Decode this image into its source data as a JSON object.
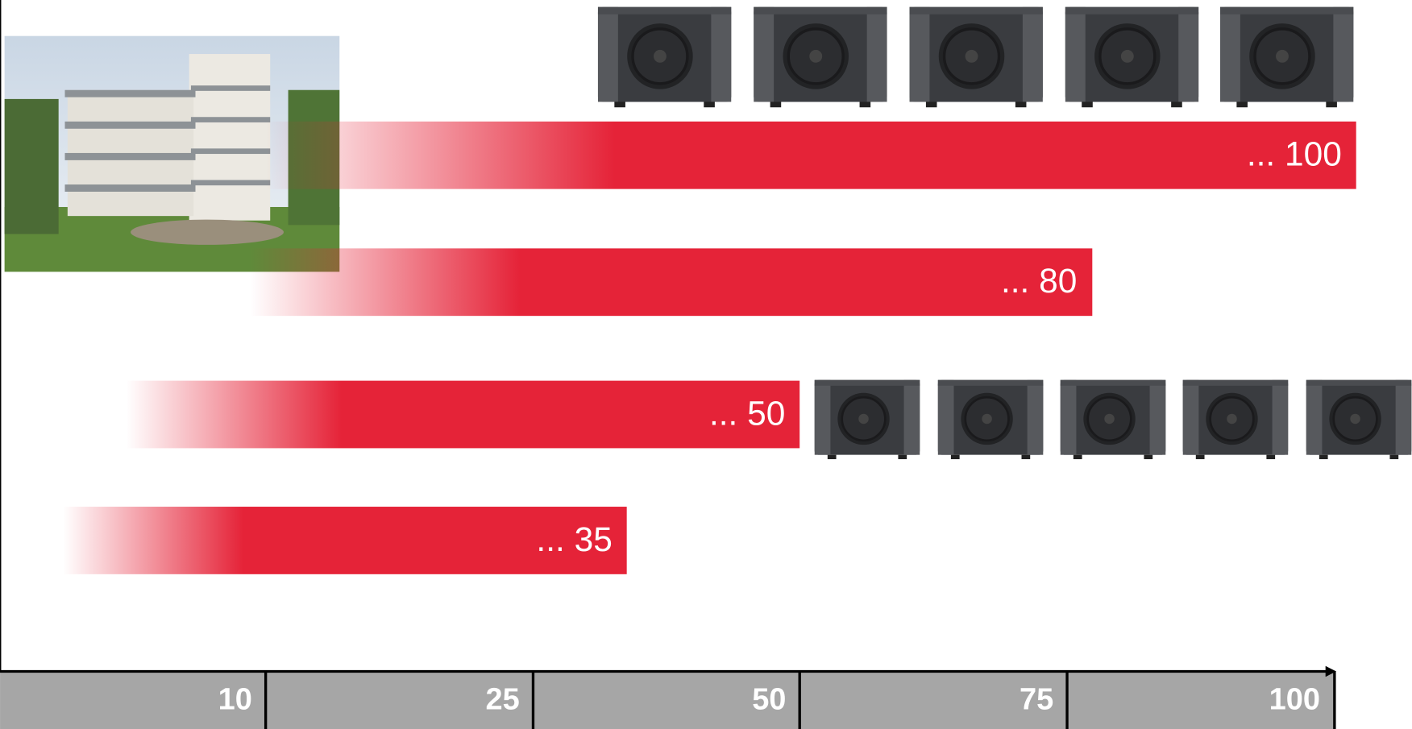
{
  "bars": [
    {
      "label": "... 100"
    },
    {
      "label": "... 80"
    },
    {
      "label": "... 50"
    },
    {
      "label": "... 35"
    }
  ],
  "axis": {
    "labels": [
      "10",
      "25",
      "50",
      "75",
      "100"
    ]
  }
}
